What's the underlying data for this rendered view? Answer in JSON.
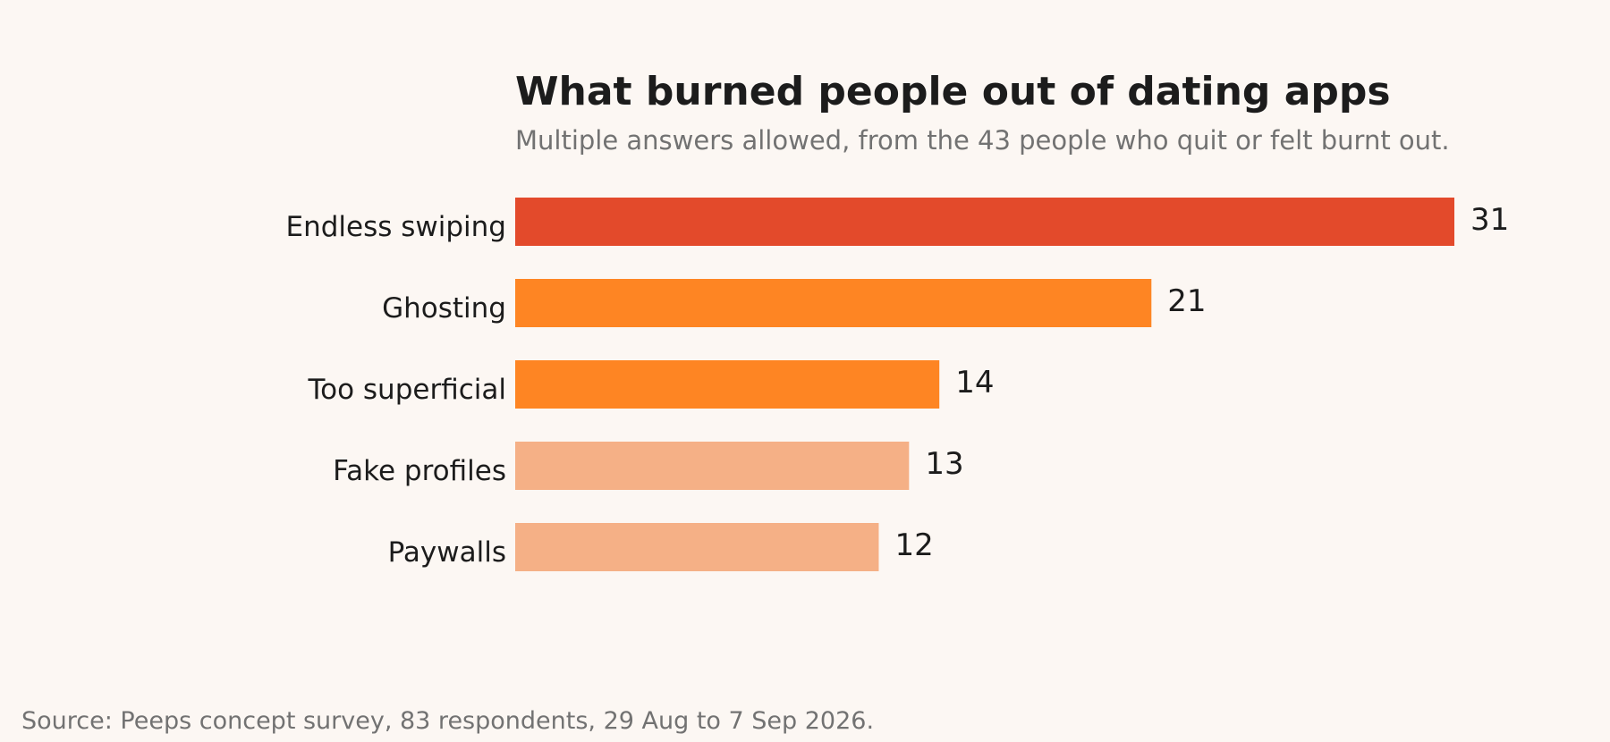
{
  "chart_data": {
    "type": "bar",
    "orientation": "horizontal",
    "title": "What burned people out of dating apps",
    "subtitle": "Multiple answers allowed, from the 43 people who quit or felt burnt out.",
    "categories": [
      "Endless swiping",
      "Ghosting",
      "Too superficial",
      "Fake profiles",
      "Paywalls"
    ],
    "values": [
      31,
      21,
      14,
      13,
      12
    ],
    "colors": [
      "#e34a2b",
      "#fe8523",
      "#fe8523",
      "#f5b086",
      "#f5b086"
    ],
    "xlim": [
      0,
      31
    ],
    "grid": false,
    "source": "Source: Peeps concept survey, 83 respondents, 29 Aug to 7 Sep 2026."
  }
}
